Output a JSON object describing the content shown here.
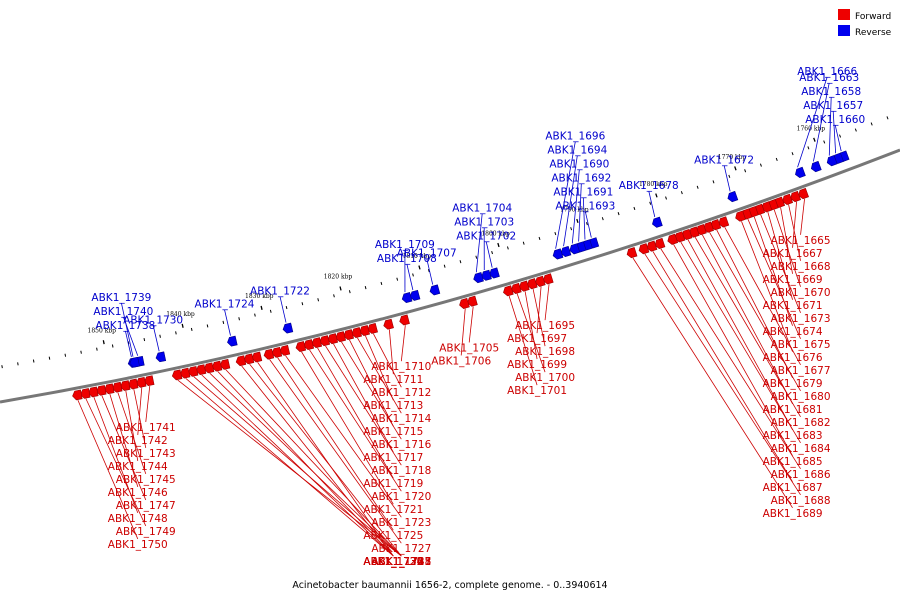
{
  "legend": {
    "forward_label": "Forward",
    "reverse_label": "Reverse",
    "forward_color": "#ee0000",
    "reverse_color": "#0000ee"
  },
  "caption": "Acinetobacter baumannii 1656-2, complete genome. - 0..3940614",
  "colors": {
    "backbone": "#777777",
    "forward": "#ee0000",
    "forward_dark": "#990000",
    "reverse": "#0000ee",
    "reverse_dark": "#000088",
    "forward_label": "#cc0000",
    "reverse_label": "#0000cc"
  },
  "ticks": [
    {
      "kbp": 1760,
      "label": "1760 kbp"
    },
    {
      "kbp": 1770,
      "label": "1770 kbp"
    },
    {
      "kbp": 1780,
      "label": "1780 kbp"
    },
    {
      "kbp": 1790,
      "label": "1790 kbp"
    },
    {
      "kbp": 1800,
      "label": "1800 kbp"
    },
    {
      "kbp": 1810,
      "label": "1810 kbp"
    },
    {
      "kbp": 1820,
      "label": "1820 kbp"
    },
    {
      "kbp": 1830,
      "label": "1830 kbp"
    },
    {
      "kbp": 1840,
      "label": "1840 kbp"
    },
    {
      "kbp": 1850,
      "label": "1850 kbp"
    }
  ],
  "forward_genes": [
    {
      "name": "ABK1_1665",
      "pos": 1763.5
    },
    {
      "name": "ABK1_1667",
      "pos": 1764.5
    },
    {
      "name": "ABK1_1668",
      "pos": 1765.5
    },
    {
      "name": "ABK1_1669",
      "pos": 1766.5
    },
    {
      "name": "ABK1_1670",
      "pos": 1767.3
    },
    {
      "name": "ABK1_1671",
      "pos": 1768.1
    },
    {
      "name": "ABK1_1673",
      "pos": 1769.0
    },
    {
      "name": "ABK1_1674",
      "pos": 1769.8
    },
    {
      "name": "ABK1_1675",
      "pos": 1770.6
    },
    {
      "name": "ABK1_1676",
      "pos": 1771.4
    },
    {
      "name": "ABK1_1677",
      "pos": 1773.5
    },
    {
      "name": "ABK1_1679",
      "pos": 1774.5
    },
    {
      "name": "ABK1_1680",
      "pos": 1775.4
    },
    {
      "name": "ABK1_1681",
      "pos": 1776.3
    },
    {
      "name": "ABK1_1682",
      "pos": 1777.2
    },
    {
      "name": "ABK1_1683",
      "pos": 1778.1
    },
    {
      "name": "ABK1_1684",
      "pos": 1779.0
    },
    {
      "name": "ABK1_1685",
      "pos": 1779.9
    },
    {
      "name": "ABK1_1686",
      "pos": 1781.5
    },
    {
      "name": "ABK1_1687",
      "pos": 1782.5
    },
    {
      "name": "ABK1_1688",
      "pos": 1783.5
    },
    {
      "name": "ABK1_1689",
      "pos": 1785.0
    },
    {
      "name": "ABK1_1695",
      "pos": 1795.5
    },
    {
      "name": "ABK1_1697",
      "pos": 1796.5
    },
    {
      "name": "ABK1_1698",
      "pos": 1797.5
    },
    {
      "name": "ABK1_1699",
      "pos": 1798.5
    },
    {
      "name": "ABK1_1700",
      "pos": 1799.5
    },
    {
      "name": "ABK1_1701",
      "pos": 1800.5
    },
    {
      "name": "ABK1_1705",
      "pos": 1805.0
    },
    {
      "name": "ABK1_1706",
      "pos": 1806.0
    },
    {
      "name": "ABK1_1710",
      "pos": 1813.5
    },
    {
      "name": "ABK1_1711",
      "pos": 1815.5
    },
    {
      "name": "ABK1_1712",
      "pos": 1817.5
    },
    {
      "name": "ABK1_1713",
      "pos": 1818.5
    },
    {
      "name": "ABK1_1714",
      "pos": 1819.5
    },
    {
      "name": "ABK1_1715",
      "pos": 1820.5
    },
    {
      "name": "ABK1_1716",
      "pos": 1821.5
    },
    {
      "name": "ABK1_1717",
      "pos": 1822.5
    },
    {
      "name": "ABK1_1718",
      "pos": 1823.5
    },
    {
      "name": "ABK1_1719",
      "pos": 1824.5
    },
    {
      "name": "ABK1_1720",
      "pos": 1825.5
    },
    {
      "name": "ABK1_1721",
      "pos": 1826.5
    },
    {
      "name": "ABK1_1723",
      "pos": 1828.5
    },
    {
      "name": "ABK1_1725",
      "pos": 1829.5
    },
    {
      "name": "ABK1_1727",
      "pos": 1830.5
    },
    {
      "name": "ABK1_1726",
      "pos": 1832.0
    },
    {
      "name": "ABK1_1728",
      "pos": 1833.0
    },
    {
      "name": "ABK1_1729",
      "pos": 1834.0
    },
    {
      "name": "ABK1_1731",
      "pos": 1836.0
    },
    {
      "name": "ABK1_1732",
      "pos": 1837.0
    },
    {
      "name": "ABK1_1733",
      "pos": 1838.0
    },
    {
      "name": "ABK1_1734",
      "pos": 1839.0
    },
    {
      "name": "ABK1_1735",
      "pos": 1840.0
    },
    {
      "name": "ABK1_1736",
      "pos": 1841.0
    },
    {
      "name": "ABK1_1737",
      "pos": 1842.0
    },
    {
      "name": "ABK1_1741",
      "pos": 1845.5
    },
    {
      "name": "ABK1_1742",
      "pos": 1846.5
    },
    {
      "name": "ABK1_1743",
      "pos": 1847.5
    },
    {
      "name": "ABK1_1744",
      "pos": 1848.5
    },
    {
      "name": "ABK1_1745",
      "pos": 1849.5
    },
    {
      "name": "ABK1_1746",
      "pos": 1850.5
    },
    {
      "name": "ABK1_1747",
      "pos": 1851.5
    },
    {
      "name": "ABK1_1748",
      "pos": 1852.5
    },
    {
      "name": "ABK1_1749",
      "pos": 1853.5
    },
    {
      "name": "ABK1_1750",
      "pos": 1854.5
    }
  ],
  "reverse_genes": [
    {
      "name": "ABK1_1660",
      "pos": 1757.5
    },
    {
      "name": "ABK1_1657",
      "pos": 1758.2
    },
    {
      "name": "ABK1_1658",
      "pos": 1759.0
    },
    {
      "name": "ABK1_1663",
      "pos": 1761.0
    },
    {
      "name": "ABK1_1666",
      "pos": 1763.0
    },
    {
      "name": "ABK1_1672",
      "pos": 1771.5
    },
    {
      "name": "ABK1_1678",
      "pos": 1781.0
    },
    {
      "name": "ABK1_1693",
      "pos": 1789.0
    },
    {
      "name": "ABK1_1691",
      "pos": 1789.8
    },
    {
      "name": "ABK1_1692",
      "pos": 1790.6
    },
    {
      "name": "ABK1_1690",
      "pos": 1791.4
    },
    {
      "name": "ABK1_1694",
      "pos": 1792.5
    },
    {
      "name": "ABK1_1696",
      "pos": 1793.5
    },
    {
      "name": "ABK1_1702",
      "pos": 1801.5
    },
    {
      "name": "ABK1_1703",
      "pos": 1802.5
    },
    {
      "name": "ABK1_1704",
      "pos": 1803.5
    },
    {
      "name": "ABK1_1707",
      "pos": 1809.0
    },
    {
      "name": "ABK1_1708",
      "pos": 1811.5
    },
    {
      "name": "ABK1_1709",
      "pos": 1812.5
    },
    {
      "name": "ABK1_1722",
      "pos": 1827.5
    },
    {
      "name": "ABK1_1724",
      "pos": 1834.5
    },
    {
      "name": "ABK1_1730",
      "pos": 1843.5
    },
    {
      "name": "ABK1_1738",
      "pos": 1847.0
    },
    {
      "name": "ABK1_1740",
      "pos": 1846.2
    },
    {
      "name": "ABK1_1739",
      "pos": 1846.8
    }
  ]
}
